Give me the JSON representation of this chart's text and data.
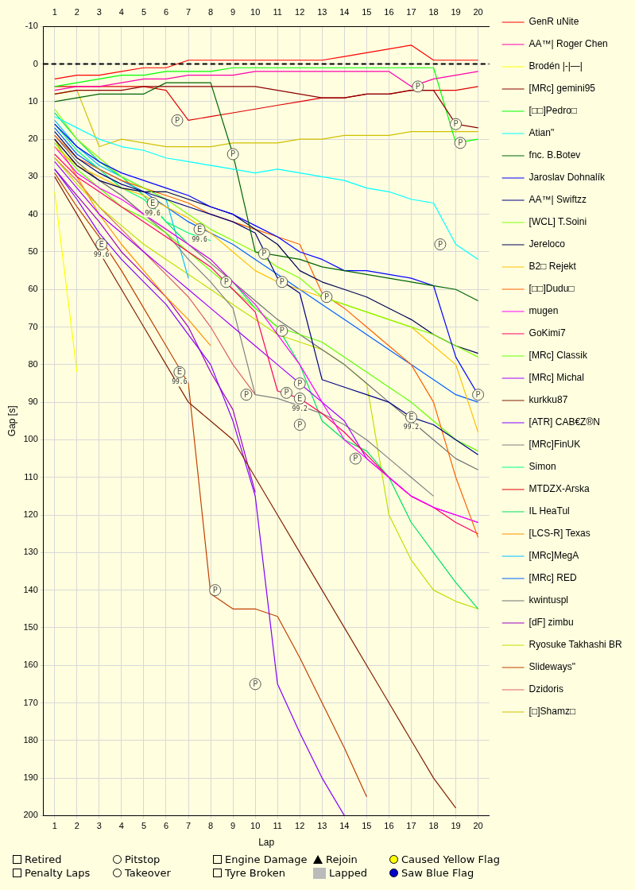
{
  "chart_data": {
    "type": "line",
    "xlabel": "Lap",
    "ylabel": "Gap [s]",
    "x": [
      1,
      2,
      3,
      4,
      5,
      6,
      7,
      8,
      9,
      10,
      11,
      12,
      13,
      14,
      15,
      16,
      17,
      18,
      19,
      20
    ],
    "xlim": [
      0.5,
      20.5
    ],
    "xticks": [
      1,
      2,
      3,
      4,
      5,
      6,
      7,
      8,
      9,
      10,
      11,
      12,
      13,
      14,
      15,
      16,
      17,
      18,
      19,
      20
    ],
    "x2lim": [
      0.5,
      20.5
    ],
    "x2ticks": [
      1,
      2,
      3,
      4,
      5,
      6,
      7,
      8,
      9,
      10,
      11,
      12,
      13,
      14,
      15,
      16,
      17,
      18,
      19,
      20
    ],
    "ylim": [
      200,
      -10
    ],
    "yticks": [
      -10,
      0,
      10,
      20,
      30,
      40,
      50,
      60,
      70,
      80,
      90,
      100,
      110,
      120,
      130,
      140,
      150,
      160,
      170,
      180,
      190,
      200
    ],
    "grid": true,
    "legend": "right",
    "marker": "none",
    "line_style": "solid",
    "ref_lines": [
      {
        "axis": "y",
        "value": 0,
        "label": null,
        "color": "#000000",
        "line_style": "dashed"
      }
    ],
    "series": [
      {
        "name": "GenR uNite",
        "color": "#ff0000",
        "values": [
          4,
          3,
          3,
          2,
          1,
          1,
          -1,
          -1,
          -1,
          -1,
          -1,
          -1,
          -1,
          -2,
          -3,
          -4,
          -5,
          -1,
          -1,
          -1
        ]
      },
      {
        "name": "AA™| Roger Chen",
        "color": "#ff00aa",
        "values": [
          7,
          6,
          6,
          5,
          4,
          4,
          3,
          3,
          3,
          2,
          2,
          2,
          2,
          2,
          2,
          2,
          6,
          4,
          3,
          2
        ]
      },
      {
        "name": "Brodén |-|—|",
        "color": "#ffff00",
        "values": [
          34,
          82,
          null,
          null,
          null,
          null,
          null,
          null,
          null,
          null,
          null,
          null,
          null,
          null,
          null,
          null,
          null,
          null,
          null,
          null
        ]
      },
      {
        "name": "[MRc] gemini95",
        "color": "#8b0000",
        "values": [
          8,
          7,
          7,
          7,
          6,
          6,
          6,
          6,
          6,
          6,
          7,
          8,
          9,
          9,
          8,
          8,
          7,
          7,
          16,
          17
        ]
      },
      {
        "name": "[□□]Pedro□",
        "color": "#00ff00",
        "values": [
          6,
          5,
          4,
          3,
          3,
          2,
          2,
          2,
          1,
          1,
          1,
          1,
          1,
          1,
          1,
          1,
          1,
          1,
          21,
          20
        ]
      },
      {
        "name": "Atian\"",
        "color": "#00ffff",
        "values": [
          14,
          17,
          20,
          22,
          23,
          25,
          26,
          27,
          28,
          29,
          28,
          29,
          30,
          31,
          33,
          34,
          36,
          37,
          48,
          52
        ]
      },
      {
        "name": "fnc. B.Botev",
        "color": "#006400",
        "values": [
          10,
          9,
          8,
          8,
          8,
          5,
          5,
          5,
          24,
          50,
          51,
          52,
          54,
          55,
          56,
          57,
          58,
          59,
          60,
          63
        ]
      },
      {
        "name": "Jaroslav Dohnalík",
        "color": "#0000ff",
        "values": [
          16,
          22,
          26,
          29,
          31,
          33,
          35,
          38,
          40,
          43,
          46,
          50,
          52,
          55,
          55,
          56,
          57,
          59,
          78,
          88
        ]
      },
      {
        "name": "AA™| Swiftzz",
        "color": "#000080",
        "values": [
          18,
          25,
          29,
          32,
          34,
          36,
          38,
          40,
          42,
          45,
          57,
          61,
          84,
          86,
          88,
          90,
          94,
          96,
          100,
          104
        ]
      },
      {
        "name": "[WCL] T.Soini",
        "color": "#80ff00",
        "values": [
          12,
          20,
          25,
          30,
          33,
          36,
          40,
          44,
          47,
          50,
          54,
          57,
          62,
          64,
          66,
          68,
          70,
          72,
          75,
          78
        ]
      },
      {
        "name": "Jereloco",
        "color": "#000050",
        "values": [
          20,
          27,
          31,
          33,
          34,
          34,
          36,
          38,
          40,
          44,
          48,
          55,
          58,
          60,
          62,
          65,
          68,
          72,
          75,
          77
        ]
      },
      {
        "name": "B2□ Rejekt",
        "color": "#ffc000",
        "values": [
          22,
          27,
          30,
          33,
          35,
          38,
          41,
          45,
          50,
          55,
          58,
          60,
          62,
          64,
          66,
          68,
          70,
          75,
          80,
          98
        ]
      },
      {
        "name": "[□□]Dudu□",
        "color": "#ff6000",
        "values": [
          19,
          25,
          28,
          31,
          33,
          35,
          37,
          40,
          42,
          44,
          46,
          48,
          61,
          65,
          70,
          75,
          80,
          90,
          110,
          126
        ]
      },
      {
        "name": "mugen",
        "color": "#ff00ff",
        "values": [
          22,
          29,
          33,
          36,
          40,
          44,
          48,
          52,
          58,
          64,
          72,
          80,
          90,
          100,
          105,
          110,
          115,
          118,
          120,
          122
        ]
      },
      {
        "name": "GoKimi7",
        "color": "#ff0060",
        "values": [
          24,
          30,
          34,
          38,
          42,
          46,
          50,
          54,
          60,
          66,
          87,
          89,
          93,
          98,
          104,
          110,
          115,
          118,
          122,
          125
        ]
      },
      {
        "name": "[MRc] Classik",
        "color": "#60ff00",
        "values": [
          21,
          28,
          33,
          38,
          41,
          45,
          50,
          55,
          60,
          65,
          70,
          72,
          74,
          78,
          82,
          86,
          90,
          95,
          100,
          103
        ]
      },
      {
        "name": "[MRc] Michal",
        "color": "#a000ff",
        "values": [
          26,
          33,
          40,
          45,
          50,
          55,
          60,
          65,
          70,
          75,
          80,
          85,
          90,
          95,
          105,
          110,
          115,
          118,
          120,
          122
        ]
      },
      {
        "name": "kurkku87",
        "color": "#802000",
        "values": [
          30,
          40,
          50,
          60,
          70,
          80,
          90,
          95,
          100,
          110,
          120,
          130,
          140,
          150,
          160,
          170,
          180,
          190,
          198,
          null
        ]
      },
      {
        "name": "[ATR] CAB€Z®N",
        "color": "#8000ff",
        "values": [
          28,
          36,
          45,
          52,
          58,
          64,
          72,
          80,
          95,
          115,
          165,
          178,
          190,
          200,
          null,
          null,
          null,
          null,
          null,
          null
        ]
      },
      {
        "name": "[MRc]FinUK",
        "color": "#808080",
        "values": [
          20,
          27,
          31,
          35,
          40,
          45,
          52,
          58,
          65,
          88,
          89,
          91,
          93,
          96,
          100,
          105,
          110,
          115,
          null,
          null
        ]
      },
      {
        "name": "Simon",
        "color": "#00ff80",
        "values": [
          16,
          23,
          28,
          33,
          36,
          42,
          45,
          47,
          null,
          null,
          null,
          null,
          null,
          null,
          null,
          null,
          null,
          null,
          null,
          null
        ]
      },
      {
        "name": "MTDZX-Arska",
        "color": "#e00000",
        "values": [
          6,
          6,
          6,
          6,
          6,
          7,
          15,
          14,
          13,
          12,
          11,
          10,
          9,
          9,
          8,
          8,
          7,
          7,
          7,
          6
        ]
      },
      {
        "name": "IL HeaTul",
        "color": "#00e060",
        "values": [
          13,
          20,
          26,
          30,
          35,
          42,
          48,
          52,
          58,
          65,
          70,
          80,
          95,
          100,
          103,
          110,
          122,
          130,
          138,
          145
        ]
      },
      {
        "name": "[LCS-R] Texas",
        "color": "#ff9000",
        "values": [
          20,
          30,
          40,
          48,
          55,
          62,
          68,
          75,
          null,
          null,
          null,
          null,
          null,
          null,
          null,
          null,
          null,
          null,
          null,
          null
        ]
      },
      {
        "name": "[MRc]MegA",
        "color": "#00c0ff",
        "values": [
          15,
          22,
          27,
          30,
          33,
          36,
          57,
          null,
          null,
          null,
          null,
          null,
          null,
          null,
          null,
          null,
          null,
          null,
          null,
          null
        ]
      },
      {
        "name": "[MRc] RED",
        "color": "#0060ff",
        "values": [
          17,
          24,
          28,
          31,
          34,
          38,
          42,
          45,
          48,
          52,
          56,
          60,
          64,
          68,
          72,
          76,
          80,
          84,
          88,
          90
        ]
      },
      {
        "name": "kwintuspl",
        "color": "#707070",
        "values": [
          19,
          26,
          31,
          35,
          40,
          44,
          48,
          53,
          58,
          63,
          68,
          72,
          76,
          80,
          85,
          90,
          95,
          100,
          105,
          108
        ]
      },
      {
        "name": "[dF] zimbu",
        "color": "#a000c0",
        "values": [
          28,
          35,
          42,
          50,
          56,
          62,
          70,
          82,
          92,
          114,
          null,
          null,
          null,
          null,
          null,
          null,
          null,
          null,
          null,
          null
        ]
      },
      {
        "name": "Ryosuke Takhashi BR",
        "color": "#c0e000",
        "values": [
          25,
          32,
          38,
          43,
          48,
          52,
          56,
          60,
          64,
          68,
          72,
          74,
          76,
          80,
          85,
          120,
          132,
          140,
          143,
          145
        ]
      },
      {
        "name": "Slideways\"",
        "color": "#c04000",
        "values": [
          29,
          38,
          46,
          55,
          65,
          75,
          85,
          141,
          145,
          145,
          147,
          158,
          170,
          182,
          195,
          null,
          null,
          null,
          null,
          null
        ]
      },
      {
        "name": "Dzidoris",
        "color": "#e06060",
        "values": [
          25,
          31,
          38,
          44,
          50,
          56,
          62,
          70,
          80,
          88,
          null,
          null,
          null,
          null,
          null,
          null,
          null,
          null,
          null,
          null
        ]
      },
      {
        "name": "[□]Shamz□",
        "color": "#d0c000",
        "values": [
          8,
          7,
          22,
          20,
          21,
          22,
          22,
          22,
          21,
          21,
          21,
          20,
          20,
          19,
          19,
          19,
          18,
          18,
          18,
          18
        ]
      }
    ],
    "annotations": [
      {
        "text": "P",
        "x": 6.5,
        "y": 15
      },
      {
        "text": "P",
        "x": 9,
        "y": 24
      },
      {
        "text": "P",
        "x": 10.4,
        "y": 50.5
      },
      {
        "text": "P",
        "x": 17.3,
        "y": 6
      },
      {
        "text": "P",
        "x": 19,
        "y": 16
      },
      {
        "text": "P",
        "x": 19.2,
        "y": 21
      },
      {
        "text": "P",
        "x": 18.3,
        "y": 48
      },
      {
        "text": "P",
        "x": 12,
        "y": 85
      },
      {
        "text": "P",
        "x": 20,
        "y": 88
      },
      {
        "text": "P",
        "x": 11.2,
        "y": 58
      },
      {
        "text": "P",
        "x": 13.2,
        "y": 62
      },
      {
        "text": "P",
        "x": 11.2,
        "y": 71
      },
      {
        "text": "P",
        "x": 9.6,
        "y": 88
      },
      {
        "text": "P",
        "x": 11.4,
        "y": 87.5
      },
      {
        "text": "P",
        "x": 12,
        "y": 96
      },
      {
        "text": "P",
        "x": 14.5,
        "y": 105
      },
      {
        "text": "P",
        "x": 8.2,
        "y": 140
      },
      {
        "text": "P",
        "x": 10,
        "y": 165
      },
      {
        "text": "P",
        "x": 8.7,
        "y": 58
      },
      {
        "text": "E",
        "x": 3.1,
        "y": 48
      },
      {
        "text": "E",
        "x": 5.4,
        "y": 37
      },
      {
        "text": "E",
        "x": 6.6,
        "y": 82
      },
      {
        "text": "E",
        "x": 7.5,
        "y": 44
      },
      {
        "text": "E",
        "x": 12,
        "y": 89
      },
      {
        "text": "E",
        "x": 17,
        "y": 94
      },
      {
        "text": "99.6",
        "x": 3.1,
        "y": 48
      },
      {
        "text": "99.6",
        "x": 5.4,
        "y": 37
      },
      {
        "text": "99.6",
        "x": 6.6,
        "y": 82
      },
      {
        "text": "99.6",
        "x": 7.5,
        "y": 44
      },
      {
        "text": "99.2",
        "x": 12,
        "y": 89
      },
      {
        "text": "99.2",
        "x": 17,
        "y": 94
      },
      "Retired",
      "Penalty Laps",
      "Pitstop",
      "Takeover",
      "Engine Damage",
      "Tyre Broken",
      "Rejoin",
      "Lapped",
      "Caused Yellow Flag",
      "Saw Blue Flag"
    ]
  }
}
